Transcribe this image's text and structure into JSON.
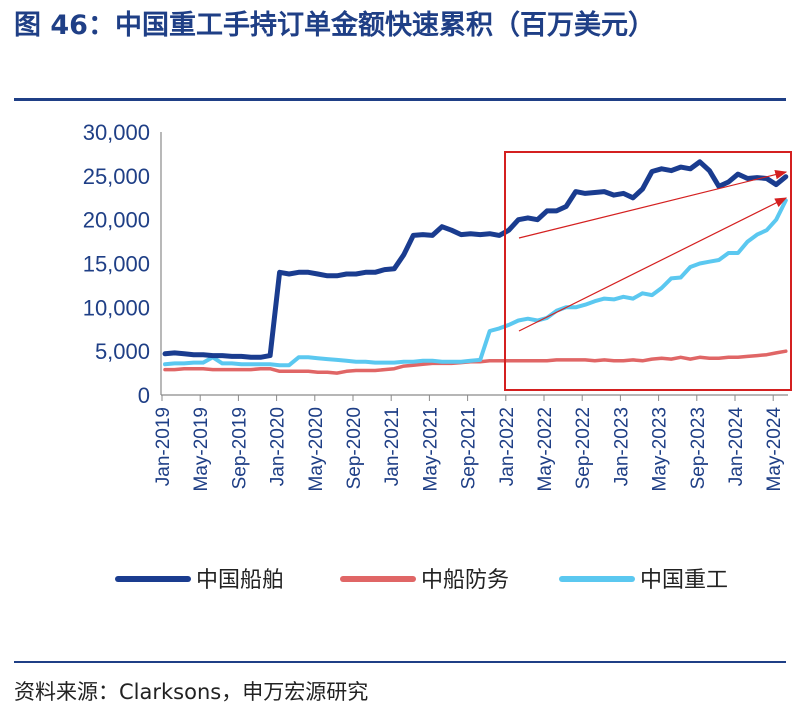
{
  "header": {
    "title": "图 46：中国重工手持订单金额快速累积（百万美元）"
  },
  "footer": {
    "source": "资料来源：Clarksons，申万宏源研究"
  },
  "chart_data": {
    "type": "line",
    "title": "图 46：中国重工手持订单金额快速累积（百万美元）",
    "xlabel": "",
    "ylabel": "",
    "ylim": [
      0,
      30000
    ],
    "yticks": [
      "30,000",
      "25,000",
      "20,000",
      "15,000",
      "10,000",
      "5,000",
      "0"
    ],
    "xticks": [
      "Jan-2019",
      "May-2019",
      "Sep-2019",
      "Jan-2020",
      "May-2020",
      "Sep-2020",
      "Jan-2021",
      "May-2021",
      "Sep-2021",
      "Jan-2022",
      "May-2022",
      "Sep-2022",
      "Jan-2023",
      "May-2023",
      "Sep-2023",
      "Jan-2024",
      "May-2024"
    ],
    "x_start": "Jan-2019",
    "x_end": "Jun-2024",
    "grid": false,
    "legend_position": "bottom",
    "series": [
      {
        "name": "中国船舶",
        "color": "#1a3c8f",
        "points": [
          [
            0,
            4700
          ],
          [
            1,
            4800
          ],
          [
            2,
            4700
          ],
          [
            3,
            4600
          ],
          [
            4,
            4600
          ],
          [
            5,
            4500
          ],
          [
            6,
            4500
          ],
          [
            7,
            4400
          ],
          [
            8,
            4400
          ],
          [
            9,
            4300
          ],
          [
            10,
            4300
          ],
          [
            11,
            4500
          ],
          [
            12,
            14000
          ],
          [
            13,
            13800
          ],
          [
            14,
            14000
          ],
          [
            15,
            14000
          ],
          [
            16,
            13800
          ],
          [
            17,
            13600
          ],
          [
            18,
            13600
          ],
          [
            19,
            13800
          ],
          [
            20,
            13800
          ],
          [
            21,
            14000
          ],
          [
            22,
            14000
          ],
          [
            23,
            14300
          ],
          [
            24,
            14400
          ],
          [
            25,
            16000
          ],
          [
            26,
            18200
          ],
          [
            27,
            18300
          ],
          [
            28,
            18200
          ],
          [
            29,
            19200
          ],
          [
            30,
            18800
          ],
          [
            31,
            18300
          ],
          [
            32,
            18400
          ],
          [
            33,
            18300
          ],
          [
            34,
            18400
          ],
          [
            35,
            18200
          ],
          [
            36,
            18800
          ],
          [
            37,
            20000
          ],
          [
            38,
            20200
          ],
          [
            39,
            20000
          ],
          [
            40,
            21000
          ],
          [
            41,
            21000
          ],
          [
            42,
            21500
          ],
          [
            43,
            23200
          ],
          [
            44,
            23000
          ],
          [
            45,
            23100
          ],
          [
            46,
            23200
          ],
          [
            47,
            22800
          ],
          [
            48,
            23000
          ],
          [
            49,
            22500
          ],
          [
            50,
            23500
          ],
          [
            51,
            25500
          ],
          [
            52,
            25800
          ],
          [
            53,
            25600
          ],
          [
            54,
            26000
          ],
          [
            55,
            25800
          ],
          [
            56,
            26600
          ],
          [
            57,
            25600
          ],
          [
            58,
            23800
          ],
          [
            59,
            24300
          ],
          [
            60,
            25200
          ],
          [
            61,
            24700
          ],
          [
            62,
            24800
          ],
          [
            63,
            24700
          ],
          [
            64,
            24000
          ],
          [
            65,
            24900
          ]
        ]
      },
      {
        "name": "中船防务",
        "color": "#e06666",
        "points": [
          [
            0,
            2900
          ],
          [
            1,
            2900
          ],
          [
            2,
            3000
          ],
          [
            3,
            3000
          ],
          [
            4,
            3000
          ],
          [
            5,
            2900
          ],
          [
            6,
            2900
          ],
          [
            7,
            2900
          ],
          [
            8,
            2900
          ],
          [
            9,
            2900
          ],
          [
            10,
            3000
          ],
          [
            11,
            3000
          ],
          [
            12,
            2700
          ],
          [
            13,
            2700
          ],
          [
            14,
            2700
          ],
          [
            15,
            2700
          ],
          [
            16,
            2600
          ],
          [
            17,
            2600
          ],
          [
            18,
            2500
          ],
          [
            19,
            2700
          ],
          [
            20,
            2800
          ],
          [
            21,
            2800
          ],
          [
            22,
            2800
          ],
          [
            23,
            2900
          ],
          [
            24,
            3000
          ],
          [
            25,
            3300
          ],
          [
            26,
            3400
          ],
          [
            27,
            3500
          ],
          [
            28,
            3600
          ],
          [
            29,
            3600
          ],
          [
            30,
            3600
          ],
          [
            31,
            3700
          ],
          [
            32,
            3800
          ],
          [
            33,
            3800
          ],
          [
            34,
            3900
          ],
          [
            35,
            3900
          ],
          [
            36,
            3900
          ],
          [
            37,
            3900
          ],
          [
            38,
            3900
          ],
          [
            39,
            3900
          ],
          [
            40,
            3900
          ],
          [
            41,
            4000
          ],
          [
            42,
            4000
          ],
          [
            43,
            4000
          ],
          [
            44,
            4000
          ],
          [
            45,
            3900
          ],
          [
            46,
            4000
          ],
          [
            47,
            3900
          ],
          [
            48,
            3900
          ],
          [
            49,
            4000
          ],
          [
            50,
            3900
          ],
          [
            51,
            4100
          ],
          [
            52,
            4200
          ],
          [
            53,
            4100
          ],
          [
            54,
            4300
          ],
          [
            55,
            4100
          ],
          [
            56,
            4300
          ],
          [
            57,
            4200
          ],
          [
            58,
            4200
          ],
          [
            59,
            4300
          ],
          [
            60,
            4300
          ],
          [
            61,
            4400
          ],
          [
            62,
            4500
          ],
          [
            63,
            4600
          ],
          [
            64,
            4800
          ],
          [
            65,
            5000
          ]
        ]
      },
      {
        "name": "中国重工",
        "color": "#5bc8f0",
        "points": [
          [
            0,
            3500
          ],
          [
            1,
            3600
          ],
          [
            2,
            3600
          ],
          [
            3,
            3700
          ],
          [
            4,
            3700
          ],
          [
            5,
            4300
          ],
          [
            6,
            3600
          ],
          [
            7,
            3600
          ],
          [
            8,
            3500
          ],
          [
            9,
            3500
          ],
          [
            10,
            3500
          ],
          [
            11,
            3500
          ],
          [
            12,
            3400
          ],
          [
            13,
            3400
          ],
          [
            14,
            4300
          ],
          [
            15,
            4300
          ],
          [
            16,
            4200
          ],
          [
            17,
            4100
          ],
          [
            18,
            4000
          ],
          [
            19,
            3900
          ],
          [
            20,
            3800
          ],
          [
            21,
            3800
          ],
          [
            22,
            3700
          ],
          [
            23,
            3700
          ],
          [
            24,
            3700
          ],
          [
            25,
            3800
          ],
          [
            26,
            3800
          ],
          [
            27,
            3900
          ],
          [
            28,
            3900
          ],
          [
            29,
            3800
          ],
          [
            30,
            3800
          ],
          [
            31,
            3800
          ],
          [
            32,
            3900
          ],
          [
            33,
            4000
          ],
          [
            34,
            7300
          ],
          [
            35,
            7600
          ],
          [
            36,
            8000
          ],
          [
            37,
            8500
          ],
          [
            38,
            8700
          ],
          [
            39,
            8500
          ],
          [
            40,
            8800
          ],
          [
            41,
            9600
          ],
          [
            42,
            10000
          ],
          [
            43,
            10000
          ],
          [
            44,
            10300
          ],
          [
            45,
            10700
          ],
          [
            46,
            11000
          ],
          [
            47,
            10900
          ],
          [
            48,
            11200
          ],
          [
            49,
            11000
          ],
          [
            50,
            11600
          ],
          [
            51,
            11400
          ],
          [
            52,
            12200
          ],
          [
            53,
            13300
          ],
          [
            54,
            13400
          ],
          [
            55,
            14600
          ],
          [
            56,
            15000
          ],
          [
            57,
            15200
          ],
          [
            58,
            15400
          ],
          [
            59,
            16200
          ],
          [
            60,
            16200
          ],
          [
            61,
            17500
          ],
          [
            62,
            18300
          ],
          [
            63,
            18800
          ],
          [
            64,
            20000
          ],
          [
            65,
            22200
          ]
        ]
      }
    ]
  }
}
